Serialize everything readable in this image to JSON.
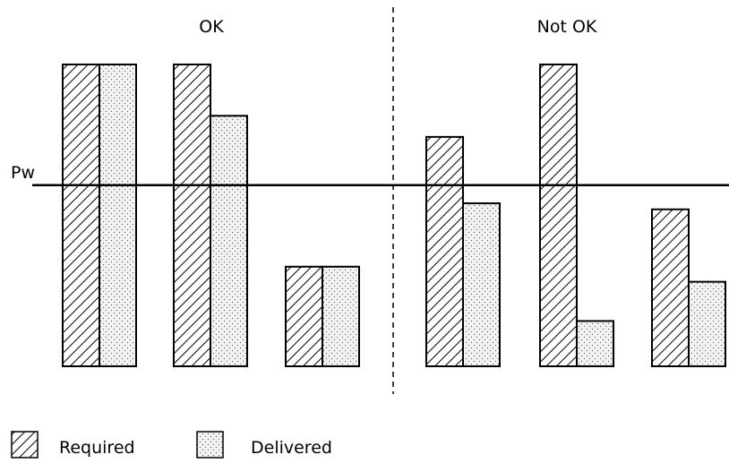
{
  "chart_data": {
    "type": "bar",
    "title": "",
    "xlabel": "",
    "ylabel": "",
    "ylim": [
      0,
      100
    ],
    "grid": false,
    "legend_position": "bottom-left",
    "groups": [
      {
        "label": "OK",
        "categories": 3
      },
      {
        "label": "Not OK",
        "categories": 3
      }
    ],
    "categories": [
      "",
      "",
      "",
      "",
      "",
      ""
    ],
    "series": [
      {
        "name": "Required",
        "pattern": "diagonal-hatch",
        "values": [
          100,
          100,
          33,
          76,
          100,
          52
        ]
      },
      {
        "name": "Delivered",
        "pattern": "dotted",
        "values": [
          100,
          83,
          33,
          54,
          15,
          28
        ]
      }
    ],
    "reference_line": {
      "label": "Pw",
      "value": 60
    },
    "separator": {
      "style": "dashed",
      "between_groups": true
    }
  },
  "colors": {
    "stroke": "#000000",
    "background": "#ffffff",
    "dot_fill": "#f2f2f2"
  }
}
